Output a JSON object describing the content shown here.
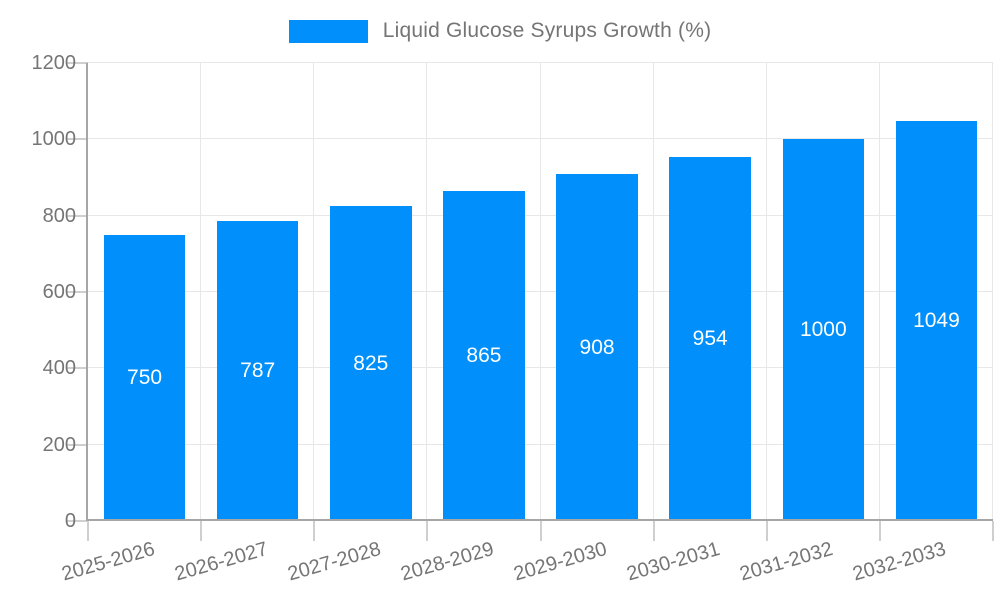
{
  "chart_data": {
    "type": "bar",
    "legend": "Liquid Glucose Syrups Growth (%)",
    "legend_position": "top",
    "categories": [
      "2025-2026",
      "2026-2027",
      "2027-2028",
      "2028-2029",
      "2029-2030",
      "2030-2031",
      "2031-2032",
      "2032-2033"
    ],
    "values": [
      750,
      787,
      825,
      865,
      908,
      954,
      1000,
      1049
    ],
    "yticks": [
      0,
      200,
      400,
      600,
      800,
      1000,
      1200
    ],
    "ylim": [
      0,
      1200
    ],
    "xlabel": "",
    "ylabel": "",
    "grid": true,
    "value_labels": "centered-inside-bars",
    "colors": {
      "bar": "#008FFB",
      "value_label": "#ffffff",
      "axis_label": "#757575",
      "grid": "#e7e7e7",
      "tick": "#cfcfcf",
      "axis_line": "#a6a6a6"
    }
  }
}
